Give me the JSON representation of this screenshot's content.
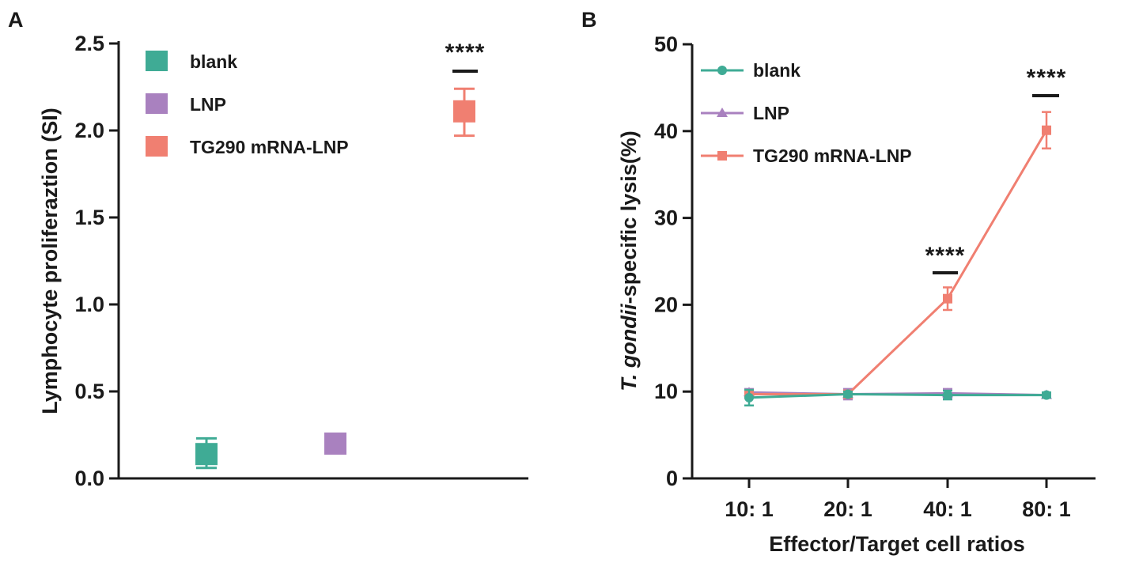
{
  "colors": {
    "blank": "#3fab95",
    "lnp": "#a981bf",
    "tg290": "#f07f71",
    "axis": "#1a1a1a"
  },
  "chart_data": [
    {
      "panel": "A",
      "type": "scatter",
      "title": "",
      "xlabel": "",
      "ylabel": "Lymphocyte proliferaztion (SI)",
      "ylim": [
        0,
        2.5
      ],
      "yticks": [
        0,
        0.5,
        1.0,
        1.5,
        2.0,
        2.5
      ],
      "ytick_labels": [
        "0.0",
        "0.5",
        "1.0",
        "1.5",
        "2.0",
        "2.5"
      ],
      "legend": [
        "blank",
        "LNP",
        "TG290 mRNA-LNP"
      ],
      "legend_position": "top-left",
      "series": [
        {
          "name": "blank",
          "value": 0.14,
          "err_low": 0.06,
          "err_high": 0.23
        },
        {
          "name": "LNP",
          "value": 0.2,
          "err_low": 0.2,
          "err_high": 0.2
        },
        {
          "name": "TG290 mRNA-LNP",
          "value": 2.11,
          "err_low": 1.97,
          "err_high": 2.24
        }
      ],
      "annotations": [
        {
          "text": "****",
          "series": "TG290 mRNA-LNP"
        }
      ]
    },
    {
      "panel": "B",
      "type": "line",
      "title": "",
      "xlabel": "Effector/Target cell ratios",
      "ylabel_italic": "T. gondii",
      "ylabel_rest": "-specific lysis(%)",
      "categories": [
        "10: 1",
        "20: 1",
        "40: 1",
        "80: 1"
      ],
      "ylim": [
        0,
        50
      ],
      "yticks": [
        0,
        10,
        20,
        30,
        40,
        50
      ],
      "ytick_labels": [
        "0",
        "10",
        "20",
        "30",
        "40",
        "50"
      ],
      "legend": [
        "blank",
        "LNP",
        "TG290 mRNA-LNP"
      ],
      "legend_position": "top-left",
      "series": [
        {
          "name": "blank",
          "marker": "circle",
          "values": [
            9.3,
            9.7,
            9.6,
            9.6
          ],
          "errors": [
            0.9,
            0.3,
            0.5,
            0.3
          ]
        },
        {
          "name": "LNP",
          "marker": "triangle",
          "values": [
            9.9,
            9.7,
            9.8,
            9.6
          ],
          "errors": [
            0.4,
            0.6,
            0.5,
            0.2
          ]
        },
        {
          "name": "TG290 mRNA-LNP",
          "marker": "square",
          "values": [
            9.7,
            9.7,
            20.7,
            40.1
          ],
          "errors": [
            0.3,
            0.4,
            1.3,
            2.1
          ]
        }
      ],
      "annotations": [
        {
          "text": "****",
          "category": "40: 1"
        },
        {
          "text": "****",
          "category": "80: 1"
        }
      ]
    }
  ]
}
